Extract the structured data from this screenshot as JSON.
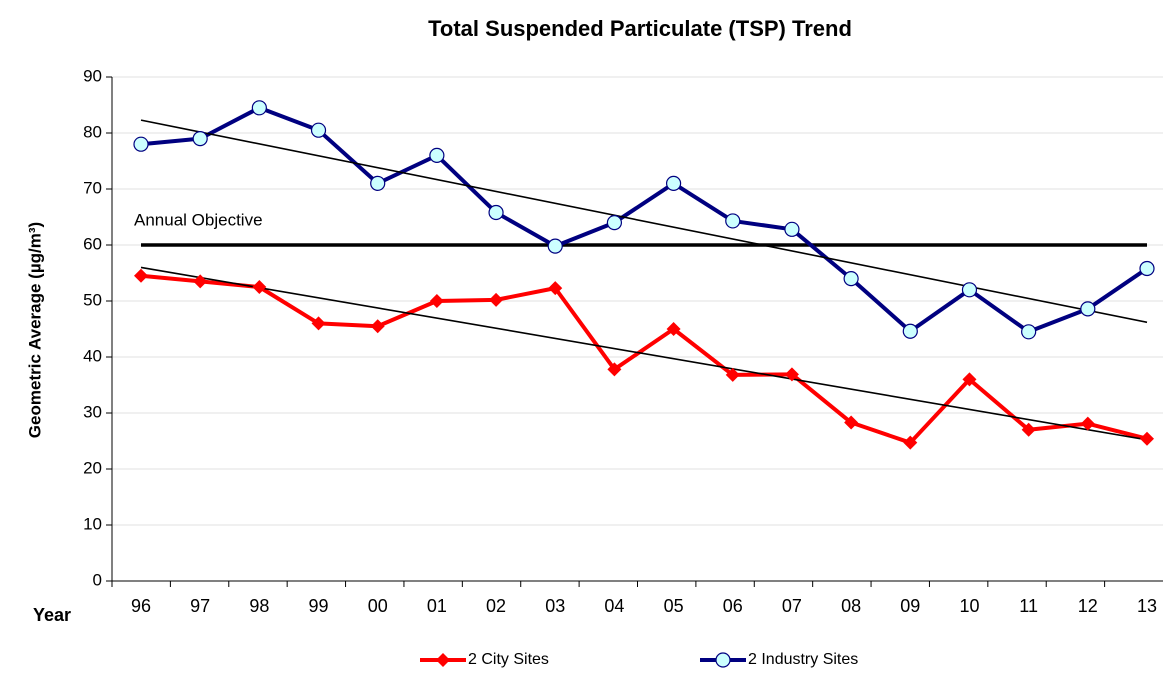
{
  "chart_data": {
    "type": "line",
    "title": "Total Suspended Particulate (TSP) Trend",
    "y_label": "Geometric Average (µg/m³)",
    "x_label": "Year",
    "categories": [
      "96",
      "97",
      "98",
      "99",
      "00",
      "01",
      "02",
      "03",
      "04",
      "05",
      "06",
      "07",
      "08",
      "09",
      "10",
      "11",
      "12",
      "13"
    ],
    "series": [
      {
        "name": "2 City Sites",
        "color": "#ff0000",
        "marker": "diamond",
        "values": [
          54.5,
          53.5,
          52.5,
          46,
          45.5,
          50,
          50.2,
          52.3,
          37.8,
          45,
          36.8,
          36.9,
          28.3,
          24.7,
          36,
          27,
          28.1,
          25.4
        ]
      },
      {
        "name": "2 Industry Sites",
        "color": "#000080",
        "marker": "circle",
        "marker_fill": "#ccffff",
        "values": [
          78,
          79,
          84.5,
          80.5,
          71,
          76,
          65.8,
          59.8,
          64,
          71,
          64.3,
          62.8,
          54,
          44.6,
          52,
          44.5,
          48.6,
          55.8
        ]
      }
    ],
    "trendlines": [
      {
        "values": [
          56,
          25.2
        ],
        "color": "#000000"
      },
      {
        "values": [
          82.3,
          46.2
        ],
        "color": "#000000"
      }
    ],
    "annotations": [
      {
        "text": "Annual Objective",
        "value": 60
      }
    ],
    "ylim": [
      0,
      90
    ],
    "yticks": [
      0,
      10,
      20,
      30,
      40,
      50,
      60,
      70,
      80,
      90
    ],
    "grid": true,
    "legend": "bottom"
  }
}
